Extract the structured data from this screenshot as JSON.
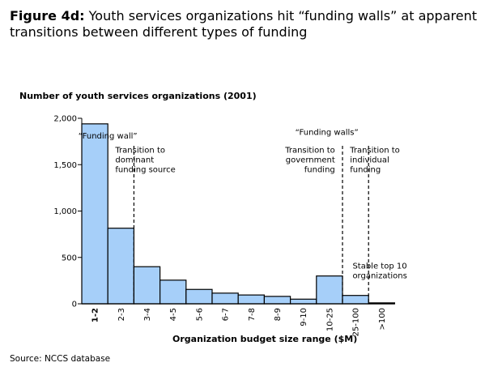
{
  "figure": {
    "label": "Figure 4d:",
    "title": "Youth services organizations hit “funding walls” at apparent transitions between different types of funding",
    "source": "Source: NCCS database"
  },
  "colors": {
    "bar_fill": "#a6cff9",
    "bar_stroke": "#000000"
  },
  "chart_data": {
    "type": "bar",
    "title": "Youth services organizations hit “funding walls” at apparent transitions between different types of funding",
    "ylabel": "Number of youth services organizations (2001)",
    "xlabel": "Organization budget size range ($M)",
    "categories": [
      "1-2",
      "2-3",
      "3-4",
      "4-5",
      "5-6",
      "6-7",
      "7-8",
      "8-9",
      "9-10",
      "10-25",
      "25-100",
      ">100"
    ],
    "values": [
      1940,
      815,
      400,
      255,
      155,
      115,
      95,
      80,
      50,
      300,
      90,
      10
    ],
    "ylim": [
      0,
      2000
    ],
    "yticks": [
      0,
      500,
      1000,
      1500,
      2000
    ],
    "ytick_labels": [
      "0",
      "500",
      "1,000",
      "1,500",
      "2,000"
    ],
    "grid": false,
    "funding_walls": [
      {
        "after_index": 1,
        "line_top": 180
      },
      {
        "after_index": 9,
        "line_top": 180
      },
      {
        "after_index": 10,
        "line_top": 180
      }
    ],
    "annotations": [
      {
        "id": "wall-1",
        "lines": [
          "“Funding wall”"
        ],
        "x_cat": 1.0,
        "y": 1780,
        "anchor": "middle"
      },
      {
        "id": "transition-dominant",
        "lines": [
          "Transition to",
          "dominant",
          "funding source"
        ],
        "x_cat": 1.1,
        "y": 1630,
        "anchor": "start"
      },
      {
        "id": "wall-2",
        "lines": [
          "“Funding walls”"
        ],
        "x_cat": 9.4,
        "y": 1820,
        "anchor": "middle"
      },
      {
        "id": "transition-government",
        "lines": [
          "Transition to",
          "government",
          "funding"
        ],
        "x_cat": 9.9,
        "y": 1630,
        "anchor": "end"
      },
      {
        "id": "transition-individual",
        "lines": [
          "Transition to",
          "individual",
          "funding"
        ],
        "x_cat": 10.1,
        "y": 1630,
        "anchor": "start"
      },
      {
        "id": "stable-top10",
        "lines": [
          "Stable top 10",
          "organizations"
        ],
        "x_cat": 10.2,
        "y": 380,
        "anchor": "start"
      }
    ]
  }
}
